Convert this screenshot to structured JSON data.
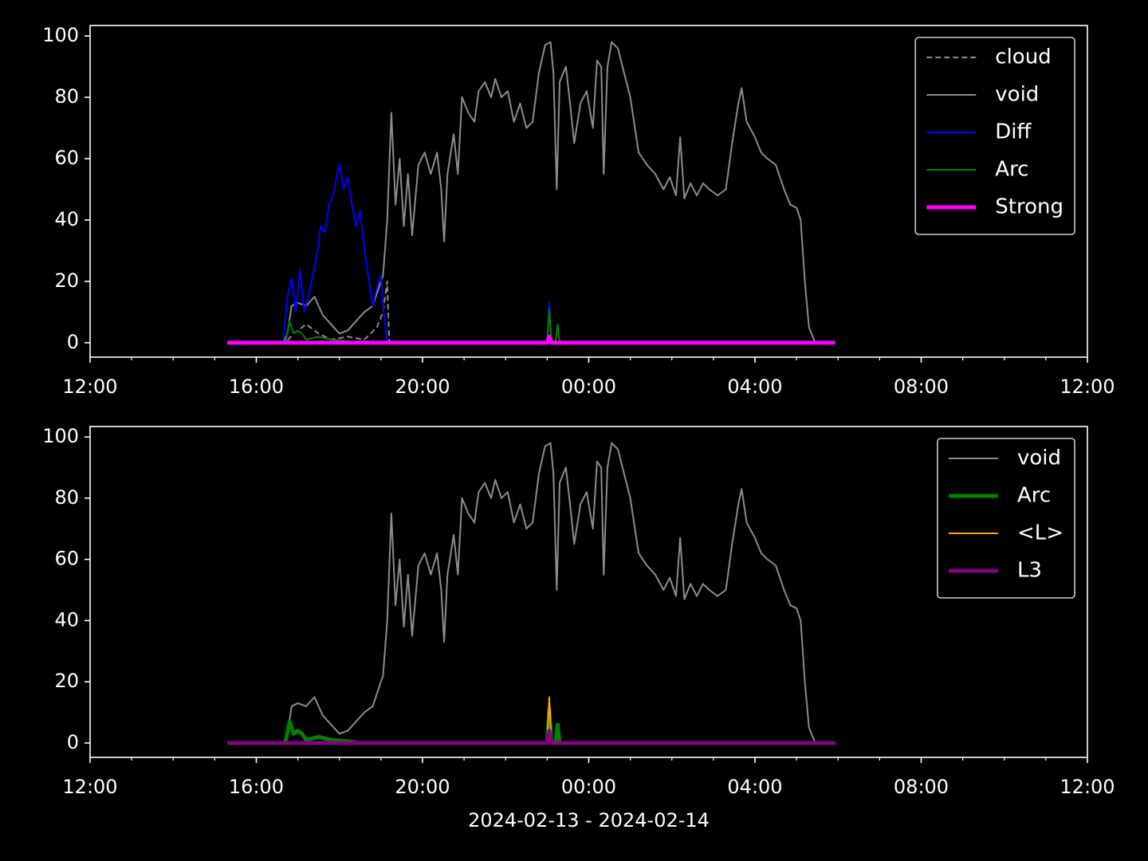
{
  "chart_data": [
    {
      "type": "line",
      "xlim": [
        12,
        36
      ],
      "ylim": [
        -4.7,
        103.4
      ],
      "xticks": [
        {
          "value": 12,
          "label": "12:00"
        },
        {
          "value": 16,
          "label": "16:00"
        },
        {
          "value": 20,
          "label": "20:00"
        },
        {
          "value": 24,
          "label": "00:00"
        },
        {
          "value": 28,
          "label": "04:00"
        },
        {
          "value": 32,
          "label": "08:00"
        },
        {
          "value": 36,
          "label": "12:00"
        }
      ],
      "xminorticks": [
        13,
        14,
        15,
        17,
        18,
        19,
        21,
        22,
        23,
        25,
        26,
        27,
        29,
        30,
        31,
        33,
        34,
        35
      ],
      "yticks": [
        0,
        20,
        40,
        60,
        80,
        100
      ],
      "legend": "upper right",
      "series": [
        {
          "name": "cloud",
          "color": "#8c8c8c",
          "linestyle": "dashed",
          "linewidth": 2,
          "x": [
            15.3,
            16.7,
            16.9,
            17.2,
            17.5,
            17.8,
            18.2,
            18.6,
            18.9,
            19.05,
            19.15,
            19.2
          ],
          "values": [
            0,
            0,
            3,
            6,
            3,
            1,
            2,
            1,
            5,
            10,
            20,
            0
          ]
        },
        {
          "name": "void",
          "color": "#8c8c8c",
          "linestyle": "solid",
          "linewidth": 2,
          "x": [
            15.3,
            16.65,
            16.75,
            16.85,
            17.0,
            17.2,
            17.4,
            17.6,
            17.8,
            18.0,
            18.2,
            18.4,
            18.6,
            18.8,
            18.95,
            19.05,
            19.15,
            19.25,
            19.35,
            19.45,
            19.55,
            19.65,
            19.75,
            19.9,
            20.05,
            20.2,
            20.35,
            20.45,
            20.52,
            20.6,
            20.75,
            20.85,
            20.95,
            21.1,
            21.25,
            21.35,
            21.5,
            21.65,
            21.75,
            21.9,
            22.05,
            22.2,
            22.35,
            22.5,
            22.65,
            22.8,
            22.95,
            23.08,
            23.15,
            23.23,
            23.3,
            23.45,
            23.55,
            23.65,
            23.8,
            23.95,
            24.1,
            24.2,
            24.3,
            24.36,
            24.45,
            24.55,
            24.7,
            24.85,
            25.0,
            25.2,
            25.4,
            25.6,
            25.8,
            25.95,
            26.1,
            26.2,
            26.3,
            26.45,
            26.6,
            26.75,
            26.9,
            27.1,
            27.3,
            27.45,
            27.6,
            27.68,
            27.8,
            28.0,
            28.15,
            28.3,
            28.5,
            28.7,
            28.85,
            29.0,
            29.1,
            29.2,
            29.3,
            29.45,
            29.93
          ],
          "values": [
            0,
            0,
            3,
            12,
            13,
            12,
            15,
            9,
            6,
            3,
            4,
            7,
            10,
            12,
            18,
            22,
            40,
            75,
            45,
            60,
            38,
            55,
            35,
            58,
            62,
            55,
            62,
            50,
            33,
            55,
            68,
            55,
            80,
            75,
            72,
            82,
            85,
            80,
            86,
            80,
            82,
            72,
            78,
            70,
            72,
            88,
            97,
            98,
            88,
            50,
            85,
            90,
            78,
            65,
            78,
            82,
            70,
            92,
            90,
            55,
            90,
            98,
            96,
            88,
            80,
            62,
            58,
            55,
            50,
            54,
            48,
            67,
            47,
            52,
            48,
            52,
            50,
            48,
            50,
            65,
            78,
            83,
            72,
            67,
            62,
            60,
            58,
            50,
            45,
            44,
            40,
            20,
            5,
            0,
            0
          ]
        },
        {
          "name": "Diff",
          "color": "#0000ff",
          "linestyle": "solid",
          "linewidth": 2,
          "x": [
            15.3,
            16.65,
            16.75,
            16.85,
            16.95,
            17.05,
            17.15,
            17.3,
            17.45,
            17.55,
            17.65,
            17.75,
            17.85,
            17.95,
            18.0,
            18.1,
            18.2,
            18.3,
            18.4,
            18.5,
            18.55,
            18.65,
            18.8,
            18.9,
            19.0,
            19.05,
            19.15,
            23.0,
            23.05,
            23.1,
            29.93
          ],
          "values": [
            0,
            0,
            15,
            21,
            10,
            24,
            10,
            18,
            28,
            38,
            36,
            45,
            48,
            55,
            58,
            50,
            54,
            45,
            38,
            43,
            36,
            26,
            12,
            18,
            22,
            12,
            0,
            0,
            13,
            0,
            0
          ]
        },
        {
          "name": "Arc",
          "color": "#008000",
          "linestyle": "solid",
          "linewidth": 2,
          "x": [
            15.3,
            16.7,
            16.8,
            16.9,
            17.0,
            17.1,
            17.2,
            17.5,
            17.8,
            18.2,
            18.5,
            23.0,
            23.05,
            23.1,
            23.2,
            23.25,
            23.3,
            29.93
          ],
          "values": [
            0,
            0,
            7,
            3,
            4,
            3,
            1,
            2,
            1,
            0.5,
            0,
            0,
            11,
            0,
            0,
            6,
            0,
            0
          ]
        },
        {
          "name": "Strong",
          "color": "#ff00ff",
          "linestyle": "solid",
          "linewidth": 5,
          "x": [
            15.3,
            23.0,
            23.05,
            23.1,
            29.93
          ],
          "values": [
            0,
            0,
            2,
            0,
            0
          ]
        }
      ]
    },
    {
      "type": "line",
      "xlabel": "2024-02-13 - 2024-02-14",
      "xlim": [
        12,
        36
      ],
      "ylim": [
        -4.7,
        103.4
      ],
      "xticks": [
        {
          "value": 12,
          "label": "12:00"
        },
        {
          "value": 16,
          "label": "16:00"
        },
        {
          "value": 20,
          "label": "20:00"
        },
        {
          "value": 24,
          "label": "00:00"
        },
        {
          "value": 28,
          "label": "04:00"
        },
        {
          "value": 32,
          "label": "08:00"
        },
        {
          "value": 36,
          "label": "12:00"
        }
      ],
      "xminorticks": [
        13,
        14,
        15,
        17,
        18,
        19,
        21,
        22,
        23,
        25,
        26,
        27,
        29,
        30,
        31,
        33,
        34,
        35
      ],
      "yticks": [
        0,
        20,
        40,
        60,
        80,
        100
      ],
      "legend": "upper right",
      "series": [
        {
          "name": "void",
          "color": "#8c8c8c",
          "linestyle": "solid",
          "linewidth": 2,
          "x": [
            15.3,
            16.65,
            16.75,
            16.85,
            17.0,
            17.2,
            17.4,
            17.6,
            17.8,
            18.0,
            18.2,
            18.4,
            18.6,
            18.8,
            18.95,
            19.05,
            19.15,
            19.25,
            19.35,
            19.45,
            19.55,
            19.65,
            19.75,
            19.9,
            20.05,
            20.2,
            20.35,
            20.45,
            20.52,
            20.6,
            20.75,
            20.85,
            20.95,
            21.1,
            21.25,
            21.35,
            21.5,
            21.65,
            21.75,
            21.9,
            22.05,
            22.2,
            22.35,
            22.5,
            22.65,
            22.8,
            22.95,
            23.08,
            23.15,
            23.23,
            23.3,
            23.45,
            23.55,
            23.65,
            23.8,
            23.95,
            24.1,
            24.2,
            24.3,
            24.36,
            24.45,
            24.55,
            24.7,
            24.85,
            25.0,
            25.2,
            25.4,
            25.6,
            25.8,
            25.95,
            26.1,
            26.2,
            26.3,
            26.45,
            26.6,
            26.75,
            26.9,
            27.1,
            27.3,
            27.45,
            27.6,
            27.68,
            27.8,
            28.0,
            28.15,
            28.3,
            28.5,
            28.7,
            28.85,
            29.0,
            29.1,
            29.2,
            29.3,
            29.45,
            29.93
          ],
          "values": [
            0,
            0,
            3,
            12,
            13,
            12,
            15,
            9,
            6,
            3,
            4,
            7,
            10,
            12,
            18,
            22,
            40,
            75,
            45,
            60,
            38,
            55,
            35,
            58,
            62,
            55,
            62,
            50,
            33,
            55,
            68,
            55,
            80,
            75,
            72,
            82,
            85,
            80,
            86,
            80,
            82,
            72,
            78,
            70,
            72,
            88,
            97,
            98,
            88,
            50,
            85,
            90,
            78,
            65,
            78,
            82,
            70,
            92,
            90,
            55,
            90,
            98,
            96,
            88,
            80,
            62,
            58,
            55,
            50,
            54,
            48,
            67,
            47,
            52,
            48,
            52,
            50,
            48,
            50,
            65,
            78,
            83,
            72,
            67,
            62,
            60,
            58,
            50,
            45,
            44,
            40,
            20,
            5,
            0,
            0
          ]
        },
        {
          "name": "Arc",
          "color": "#008000",
          "linestyle": "solid",
          "linewidth": 5,
          "x": [
            15.3,
            16.7,
            16.8,
            16.9,
            17.0,
            17.1,
            17.2,
            17.5,
            17.8,
            18.2,
            18.5,
            23.0,
            23.05,
            23.1,
            23.2,
            23.25,
            23.3,
            29.93
          ],
          "values": [
            0,
            0,
            7,
            3,
            4,
            3,
            1,
            2,
            1,
            0.5,
            0,
            0,
            11,
            0,
            0,
            6,
            0,
            0
          ]
        },
        {
          "name": "<L>",
          "color": "#ffa500",
          "linestyle": "solid",
          "linewidth": 2,
          "x": [
            15.3,
            23.0,
            23.05,
            23.1,
            29.93
          ],
          "values": [
            0,
            0,
            15,
            0,
            0
          ]
        },
        {
          "name": "L3",
          "color": "#800080",
          "linestyle": "solid",
          "linewidth": 5,
          "x": [
            15.3,
            23.0,
            23.05,
            23.1,
            29.93
          ],
          "values": [
            0,
            0,
            4,
            0,
            0
          ]
        }
      ]
    }
  ]
}
